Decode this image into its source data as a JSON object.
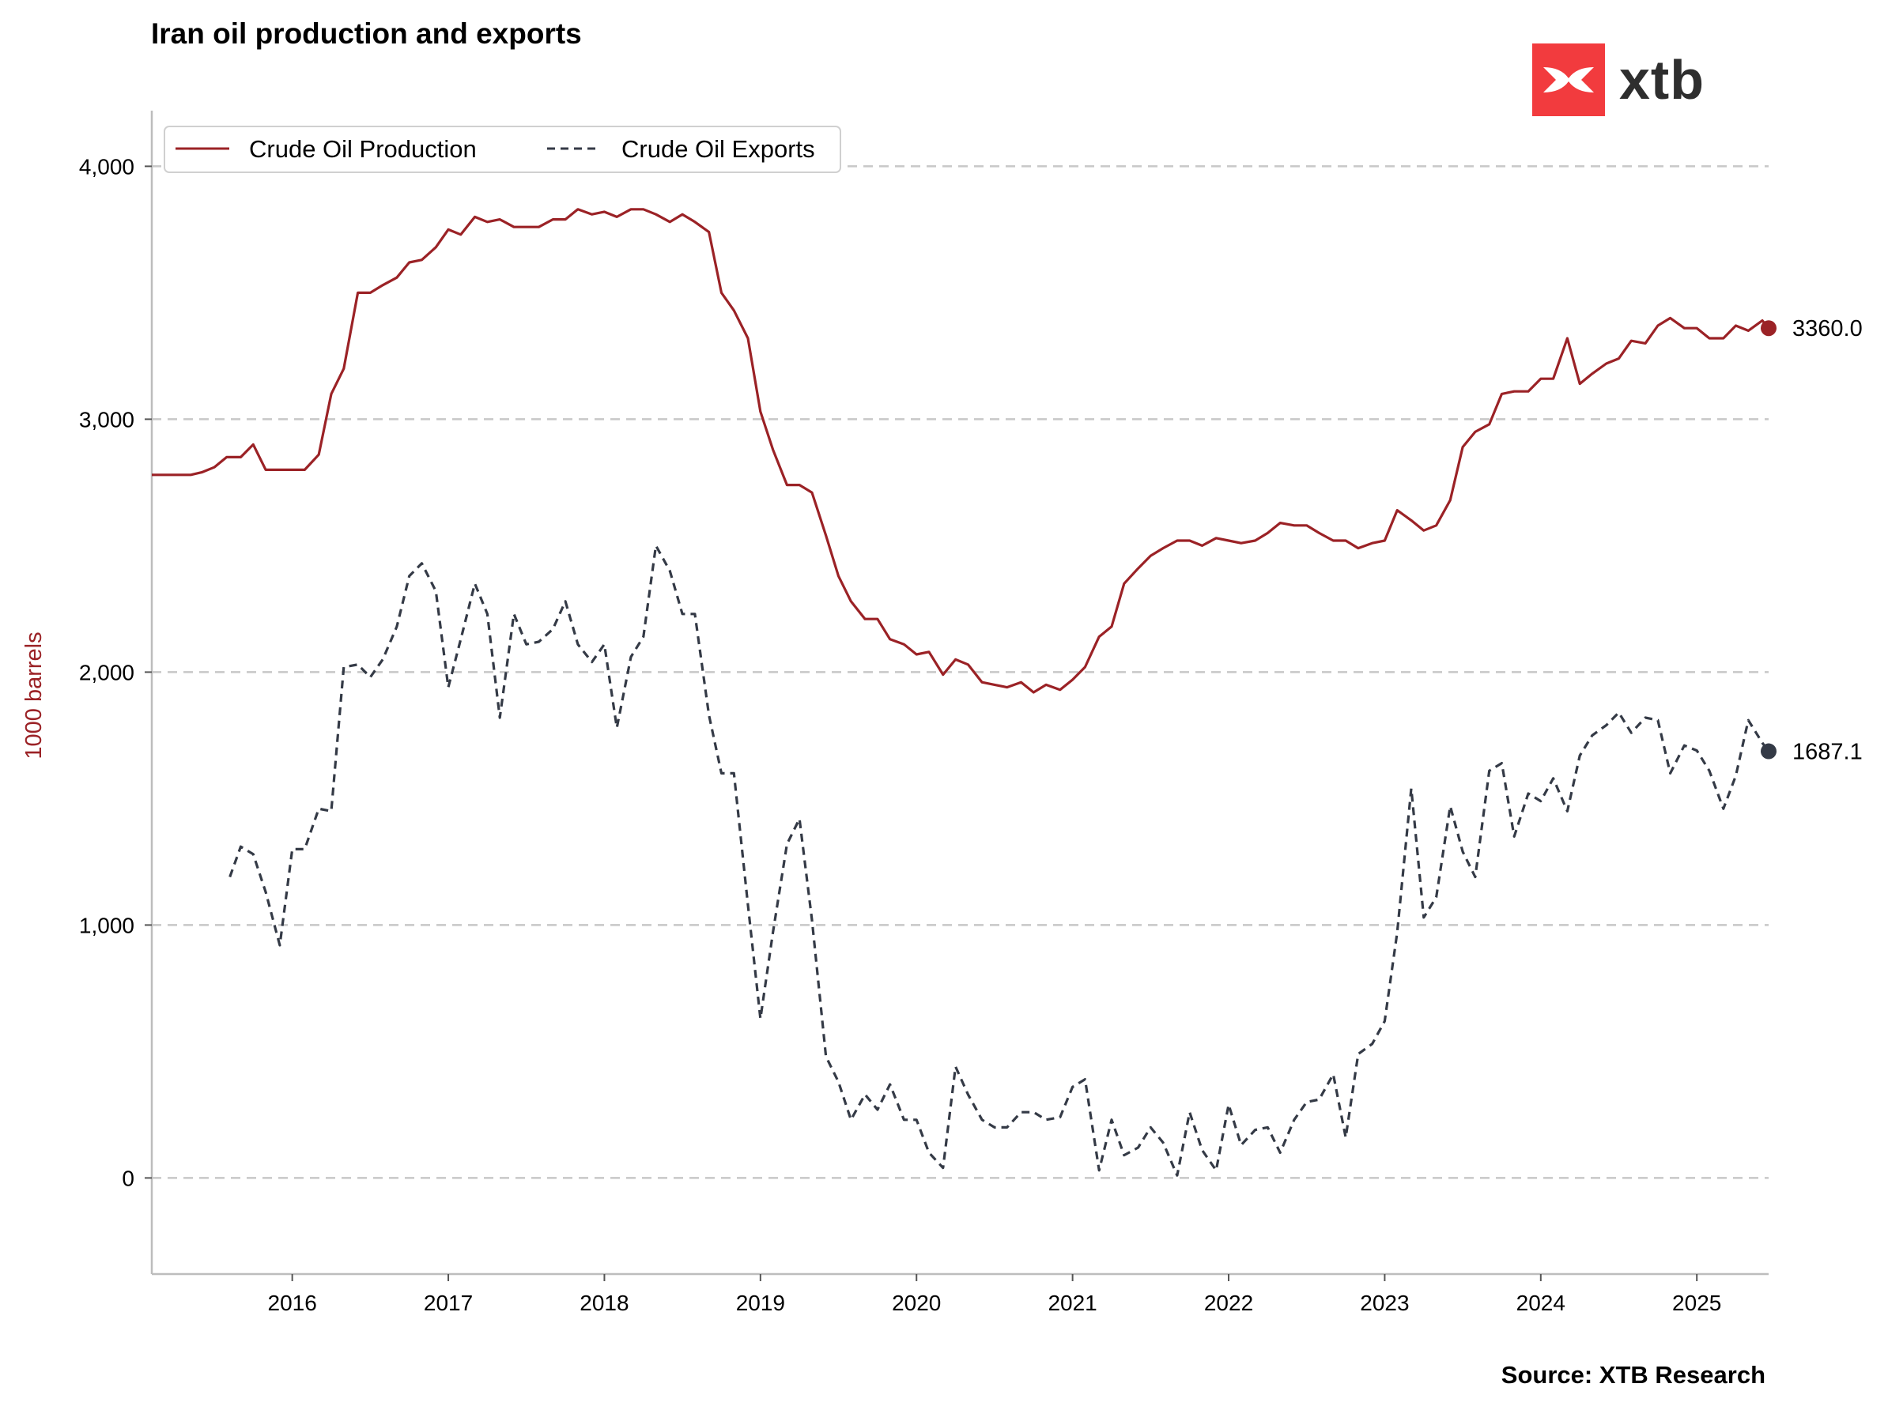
{
  "title": "Iran oil production and exports",
  "source": "Source: XTB Research",
  "logo": {
    "text": "xtb",
    "color": "#f23b3e"
  },
  "chart_data": {
    "type": "line",
    "title": "Iran oil production and exports",
    "xlabel": "",
    "ylabel": "1000 barrels",
    "ylim": [
      -380,
      4220
    ],
    "xlim": [
      2015.1,
      2025.46
    ],
    "y_ticks": [
      0,
      1000,
      2000,
      3000,
      4000
    ],
    "y_tick_labels": [
      "0",
      "1,000",
      "2,000",
      "3,000",
      "4,000"
    ],
    "x_ticks": [
      2016,
      2017,
      2018,
      2019,
      2020,
      2021,
      2022,
      2023,
      2024,
      2025
    ],
    "x_tick_labels": [
      "2016",
      "2017",
      "2018",
      "2019",
      "2020",
      "2021",
      "2022",
      "2023",
      "2024",
      "2025"
    ],
    "grid": "horizontal dashed",
    "legend": "top-left",
    "series": [
      {
        "name": "Crude Oil Production",
        "style": "solid",
        "color": "#9b2226",
        "end_label": "3360.0",
        "points": [
          [
            2015.1,
            2780
          ],
          [
            2015.25,
            2780
          ],
          [
            2015.35,
            2780
          ],
          [
            2015.42,
            2790
          ],
          [
            2015.5,
            2810
          ],
          [
            2015.58,
            2850
          ],
          [
            2015.67,
            2850
          ],
          [
            2015.75,
            2900
          ],
          [
            2015.83,
            2800
          ],
          [
            2015.92,
            2800
          ],
          [
            2016.0,
            2800
          ],
          [
            2016.08,
            2800
          ],
          [
            2016.17,
            2860
          ],
          [
            2016.25,
            3100
          ],
          [
            2016.33,
            3200
          ],
          [
            2016.42,
            3500
          ],
          [
            2016.5,
            3500
          ],
          [
            2016.58,
            3530
          ],
          [
            2016.67,
            3560
          ],
          [
            2016.75,
            3620
          ],
          [
            2016.83,
            3630
          ],
          [
            2016.92,
            3680
          ],
          [
            2017.0,
            3750
          ],
          [
            2017.08,
            3730
          ],
          [
            2017.17,
            3800
          ],
          [
            2017.25,
            3780
          ],
          [
            2017.33,
            3790
          ],
          [
            2017.42,
            3760
          ],
          [
            2017.5,
            3760
          ],
          [
            2017.58,
            3760
          ],
          [
            2017.67,
            3790
          ],
          [
            2017.75,
            3790
          ],
          [
            2017.83,
            3830
          ],
          [
            2017.92,
            3810
          ],
          [
            2018.0,
            3820
          ],
          [
            2018.08,
            3800
          ],
          [
            2018.17,
            3830
          ],
          [
            2018.25,
            3830
          ],
          [
            2018.33,
            3810
          ],
          [
            2018.42,
            3780
          ],
          [
            2018.5,
            3810
          ],
          [
            2018.58,
            3780
          ],
          [
            2018.67,
            3740
          ],
          [
            2018.75,
            3500
          ],
          [
            2018.83,
            3430
          ],
          [
            2018.92,
            3320
          ],
          [
            2019.0,
            3030
          ],
          [
            2019.08,
            2880
          ],
          [
            2019.17,
            2740
          ],
          [
            2019.25,
            2740
          ],
          [
            2019.33,
            2710
          ],
          [
            2019.42,
            2540
          ],
          [
            2019.5,
            2380
          ],
          [
            2019.58,
            2280
          ],
          [
            2019.67,
            2210
          ],
          [
            2019.75,
            2210
          ],
          [
            2019.83,
            2130
          ],
          [
            2019.92,
            2110
          ],
          [
            2020.0,
            2070
          ],
          [
            2020.08,
            2080
          ],
          [
            2020.17,
            1990
          ],
          [
            2020.25,
            2050
          ],
          [
            2020.33,
            2030
          ],
          [
            2020.42,
            1960
          ],
          [
            2020.5,
            1950
          ],
          [
            2020.58,
            1940
          ],
          [
            2020.67,
            1960
          ],
          [
            2020.75,
            1920
          ],
          [
            2020.83,
            1950
          ],
          [
            2020.92,
            1930
          ],
          [
            2021.0,
            1970
          ],
          [
            2021.08,
            2020
          ],
          [
            2021.17,
            2140
          ],
          [
            2021.25,
            2180
          ],
          [
            2021.33,
            2350
          ],
          [
            2021.42,
            2410
          ],
          [
            2021.5,
            2460
          ],
          [
            2021.58,
            2490
          ],
          [
            2021.67,
            2520
          ],
          [
            2021.75,
            2520
          ],
          [
            2021.83,
            2500
          ],
          [
            2021.92,
            2530
          ],
          [
            2022.0,
            2520
          ],
          [
            2022.08,
            2510
          ],
          [
            2022.17,
            2520
          ],
          [
            2022.25,
            2550
          ],
          [
            2022.33,
            2590
          ],
          [
            2022.42,
            2580
          ],
          [
            2022.5,
            2580
          ],
          [
            2022.58,
            2550
          ],
          [
            2022.67,
            2520
          ],
          [
            2022.75,
            2520
          ],
          [
            2022.83,
            2490
          ],
          [
            2022.92,
            2510
          ],
          [
            2023.0,
            2520
          ],
          [
            2023.08,
            2640
          ],
          [
            2023.17,
            2600
          ],
          [
            2023.25,
            2560
          ],
          [
            2023.33,
            2580
          ],
          [
            2023.42,
            2680
          ],
          [
            2023.5,
            2890
          ],
          [
            2023.58,
            2950
          ],
          [
            2023.67,
            2980
          ],
          [
            2023.75,
            3100
          ],
          [
            2023.83,
            3110
          ],
          [
            2023.92,
            3110
          ],
          [
            2024.0,
            3160
          ],
          [
            2024.08,
            3160
          ],
          [
            2024.17,
            3320
          ],
          [
            2024.25,
            3140
          ],
          [
            2024.33,
            3180
          ],
          [
            2024.42,
            3220
          ],
          [
            2024.5,
            3240
          ],
          [
            2024.58,
            3310
          ],
          [
            2024.67,
            3300
          ],
          [
            2024.75,
            3370
          ],
          [
            2024.83,
            3400
          ],
          [
            2024.92,
            3360
          ],
          [
            2025.0,
            3360
          ],
          [
            2025.08,
            3320
          ],
          [
            2025.17,
            3320
          ],
          [
            2025.25,
            3370
          ],
          [
            2025.33,
            3350
          ],
          [
            2025.42,
            3390
          ],
          [
            2025.46,
            3360
          ]
        ]
      },
      {
        "name": "Crude Oil Exports",
        "style": "dashed",
        "color": "#343a46",
        "end_label": "1687.1",
        "points": [
          [
            2015.6,
            1190
          ],
          [
            2015.67,
            1310
          ],
          [
            2015.75,
            1280
          ],
          [
            2015.83,
            1130
          ],
          [
            2015.92,
            920
          ],
          [
            2016.0,
            1300
          ],
          [
            2016.08,
            1300
          ],
          [
            2016.17,
            1460
          ],
          [
            2016.25,
            1450
          ],
          [
            2016.33,
            2020
          ],
          [
            2016.42,
            2030
          ],
          [
            2016.5,
            1980
          ],
          [
            2016.58,
            2050
          ],
          [
            2016.67,
            2180
          ],
          [
            2016.75,
            2380
          ],
          [
            2016.83,
            2430
          ],
          [
            2016.92,
            2320
          ],
          [
            2017.0,
            1940
          ],
          [
            2017.08,
            2130
          ],
          [
            2017.17,
            2350
          ],
          [
            2017.25,
            2230
          ],
          [
            2017.33,
            1820
          ],
          [
            2017.42,
            2230
          ],
          [
            2017.5,
            2110
          ],
          [
            2017.58,
            2120
          ],
          [
            2017.67,
            2170
          ],
          [
            2017.75,
            2280
          ],
          [
            2017.83,
            2110
          ],
          [
            2017.92,
            2040
          ],
          [
            2018.0,
            2110
          ],
          [
            2018.08,
            1780
          ],
          [
            2018.17,
            2060
          ],
          [
            2018.25,
            2140
          ],
          [
            2018.33,
            2500
          ],
          [
            2018.42,
            2400
          ],
          [
            2018.5,
            2230
          ],
          [
            2018.58,
            2230
          ],
          [
            2018.67,
            1830
          ],
          [
            2018.75,
            1600
          ],
          [
            2018.83,
            1600
          ],
          [
            2018.92,
            1080
          ],
          [
            2019.0,
            630
          ],
          [
            2019.08,
            970
          ],
          [
            2019.17,
            1320
          ],
          [
            2019.25,
            1420
          ],
          [
            2019.33,
            1020
          ],
          [
            2019.42,
            480
          ],
          [
            2019.5,
            380
          ],
          [
            2019.58,
            230
          ],
          [
            2019.67,
            330
          ],
          [
            2019.75,
            270
          ],
          [
            2019.83,
            370
          ],
          [
            2019.92,
            230
          ],
          [
            2020.0,
            230
          ],
          [
            2020.08,
            100
          ],
          [
            2020.17,
            40
          ],
          [
            2020.25,
            440
          ],
          [
            2020.33,
            330
          ],
          [
            2020.42,
            230
          ],
          [
            2020.5,
            200
          ],
          [
            2020.58,
            200
          ],
          [
            2020.67,
            260
          ],
          [
            2020.75,
            260
          ],
          [
            2020.83,
            230
          ],
          [
            2020.92,
            240
          ],
          [
            2021.0,
            360
          ],
          [
            2021.08,
            390
          ],
          [
            2021.17,
            30
          ],
          [
            2021.25,
            230
          ],
          [
            2021.33,
            90
          ],
          [
            2021.42,
            120
          ],
          [
            2021.5,
            200
          ],
          [
            2021.58,
            140
          ],
          [
            2021.67,
            10
          ],
          [
            2021.75,
            260
          ],
          [
            2021.83,
            110
          ],
          [
            2021.92,
            30
          ],
          [
            2022.0,
            290
          ],
          [
            2022.08,
            130
          ],
          [
            2022.17,
            190
          ],
          [
            2022.25,
            200
          ],
          [
            2022.33,
            100
          ],
          [
            2022.42,
            230
          ],
          [
            2022.5,
            300
          ],
          [
            2022.58,
            310
          ],
          [
            2022.67,
            410
          ],
          [
            2022.75,
            160
          ],
          [
            2022.83,
            490
          ],
          [
            2022.92,
            530
          ],
          [
            2023.0,
            620
          ],
          [
            2023.08,
            970
          ],
          [
            2023.17,
            1540
          ],
          [
            2023.25,
            1030
          ],
          [
            2023.33,
            1110
          ],
          [
            2023.42,
            1470
          ],
          [
            2023.5,
            1290
          ],
          [
            2023.58,
            1190
          ],
          [
            2023.67,
            1610
          ],
          [
            2023.75,
            1640
          ],
          [
            2023.83,
            1350
          ],
          [
            2023.92,
            1520
          ],
          [
            2024.0,
            1490
          ],
          [
            2024.08,
            1580
          ],
          [
            2024.17,
            1450
          ],
          [
            2024.25,
            1670
          ],
          [
            2024.33,
            1750
          ],
          [
            2024.42,
            1790
          ],
          [
            2024.5,
            1840
          ],
          [
            2024.58,
            1760
          ],
          [
            2024.67,
            1820
          ],
          [
            2024.75,
            1810
          ],
          [
            2024.83,
            1600
          ],
          [
            2024.92,
            1710
          ],
          [
            2025.0,
            1690
          ],
          [
            2025.08,
            1610
          ],
          [
            2025.17,
            1460
          ],
          [
            2025.25,
            1590
          ],
          [
            2025.33,
            1810
          ],
          [
            2025.42,
            1720
          ],
          [
            2025.46,
            1687
          ]
        ]
      }
    ]
  }
}
